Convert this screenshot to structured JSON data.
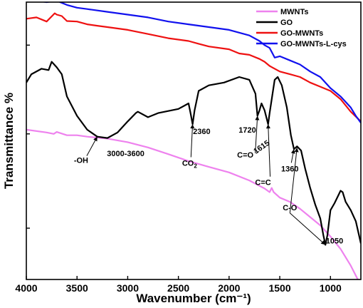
{
  "chart_data": {
    "type": "line",
    "title": "",
    "xlabel": "Wavenumber (cm⁻¹)",
    "ylabel": "Transmittance %",
    "xlim": [
      4000,
      700
    ],
    "ylim": [
      0,
      100
    ],
    "x_reversed": true,
    "xticks": [
      4000,
      3500,
      3000,
      2500,
      2000,
      1500,
      1000
    ],
    "xtick_labels": [
      "4000",
      "3500",
      "3000",
      "2500",
      "2000",
      "1500",
      "1000"
    ],
    "yticks": [
      18.5,
      52.5,
      84.5
    ],
    "ytick_labels": [
      "",
      "",
      ""
    ],
    "grid": false,
    "legend": {
      "placement": "top-right"
    },
    "series": [
      {
        "name": "MWNTs",
        "color": "#ee82ee",
        "points": [
          [
            4000,
            54
          ],
          [
            3800,
            53
          ],
          [
            3730,
            52.5
          ],
          [
            3700,
            53.2
          ],
          [
            3600,
            52
          ],
          [
            3500,
            52
          ],
          [
            3400,
            51.5
          ],
          [
            3200,
            50.8
          ],
          [
            3000,
            49.5
          ],
          [
            2800,
            47.6
          ],
          [
            2600,
            45.2
          ],
          [
            2400,
            42.7
          ],
          [
            2200,
            40.6
          ],
          [
            2000,
            38.6
          ],
          [
            1800,
            35.7
          ],
          [
            1650,
            32.8
          ],
          [
            1600,
            31.5
          ],
          [
            1580,
            33
          ],
          [
            1560,
            31.5
          ],
          [
            1500,
            29.5
          ],
          [
            1400,
            28
          ],
          [
            1300,
            25.5
          ],
          [
            1200,
            22.5
          ],
          [
            1100,
            19.5
          ],
          [
            1000,
            15.5
          ],
          [
            900,
            11
          ],
          [
            800,
            5
          ],
          [
            730,
            0
          ]
        ]
      },
      {
        "name": "GO",
        "color": "#000000",
        "points": [
          [
            4000,
            71
          ],
          [
            3950,
            74
          ],
          [
            3850,
            76
          ],
          [
            3780,
            75.5
          ],
          [
            3750,
            78.5
          ],
          [
            3700,
            76.5
          ],
          [
            3650,
            74
          ],
          [
            3600,
            66
          ],
          [
            3500,
            59
          ],
          [
            3400,
            54
          ],
          [
            3300,
            51.5
          ],
          [
            3200,
            51
          ],
          [
            3100,
            53
          ],
          [
            3000,
            57
          ],
          [
            2920,
            60
          ],
          [
            2900,
            60.5
          ],
          [
            2800,
            58.5
          ],
          [
            2700,
            60
          ],
          [
            2500,
            61.5
          ],
          [
            2400,
            63.5
          ],
          [
            2380,
            60
          ],
          [
            2360,
            56
          ],
          [
            2340,
            61
          ],
          [
            2300,
            68
          ],
          [
            2200,
            70
          ],
          [
            2050,
            71
          ],
          [
            1900,
            73
          ],
          [
            1800,
            72
          ],
          [
            1740,
            67
          ],
          [
            1720,
            59
          ],
          [
            1700,
            61
          ],
          [
            1680,
            63.5
          ],
          [
            1650,
            61
          ],
          [
            1615,
            56
          ],
          [
            1600,
            60
          ],
          [
            1550,
            72
          ],
          [
            1520,
            73
          ],
          [
            1480,
            70
          ],
          [
            1430,
            62
          ],
          [
            1390,
            52
          ],
          [
            1360,
            47
          ],
          [
            1330,
            48
          ],
          [
            1290,
            46.5
          ],
          [
            1250,
            40
          ],
          [
            1200,
            33
          ],
          [
            1150,
            27
          ],
          [
            1100,
            22
          ],
          [
            1070,
            16
          ],
          [
            1050,
            12.5
          ],
          [
            1030,
            16
          ],
          [
            1000,
            25
          ],
          [
            960,
            27.5
          ],
          [
            900,
            32
          ],
          [
            880,
            31.5
          ],
          [
            850,
            28
          ],
          [
            800,
            25
          ],
          [
            750,
            21
          ],
          [
            700,
            13
          ]
        ]
      },
      {
        "name": "GO-MWNTs",
        "color": "#ee1111",
        "points": [
          [
            4000,
            94
          ],
          [
            3900,
            94.5
          ],
          [
            3800,
            93
          ],
          [
            3720,
            96
          ],
          [
            3700,
            95.5
          ],
          [
            3650,
            95
          ],
          [
            3600,
            93.2
          ],
          [
            3500,
            93
          ],
          [
            3400,
            92
          ],
          [
            3300,
            91.5
          ],
          [
            3200,
            91
          ],
          [
            3000,
            90
          ],
          [
            2800,
            88.5
          ],
          [
            2600,
            87
          ],
          [
            2400,
            86
          ],
          [
            2300,
            85
          ],
          [
            2200,
            84
          ],
          [
            2000,
            83
          ],
          [
            1900,
            81.5
          ],
          [
            1800,
            81
          ],
          [
            1700,
            79.5
          ],
          [
            1650,
            78.5
          ],
          [
            1600,
            77
          ],
          [
            1500,
            75
          ],
          [
            1400,
            74
          ],
          [
            1300,
            73
          ],
          [
            1200,
            71
          ],
          [
            1100,
            69.5
          ],
          [
            1000,
            68
          ],
          [
            900,
            65
          ],
          [
            800,
            60.5
          ],
          [
            700,
            57
          ]
        ]
      },
      {
        "name": "GO-MWNTs-L-cys",
        "color": "#1111ee",
        "points": [
          [
            4000,
            101
          ],
          [
            3900,
            100.5
          ],
          [
            3800,
            100
          ],
          [
            3700,
            100.5
          ],
          [
            3600,
            99
          ],
          [
            3500,
            98
          ],
          [
            3400,
            97.5
          ],
          [
            3200,
            96.5
          ],
          [
            3000,
            95.5
          ],
          [
            2800,
            94.5
          ],
          [
            2600,
            93
          ],
          [
            2400,
            92
          ],
          [
            2200,
            91
          ],
          [
            2000,
            90
          ],
          [
            1800,
            88
          ],
          [
            1700,
            86
          ],
          [
            1650,
            84.5
          ],
          [
            1600,
            83.5
          ],
          [
            1550,
            80
          ],
          [
            1500,
            80.5
          ],
          [
            1400,
            79
          ],
          [
            1300,
            77.5
          ],
          [
            1200,
            75
          ],
          [
            1100,
            73
          ],
          [
            1000,
            69
          ],
          [
            900,
            66
          ],
          [
            800,
            62
          ],
          [
            750,
            59
          ],
          [
            700,
            56.5
          ]
        ]
      }
    ],
    "annotations": [
      {
        "text": "-OH",
        "at": [
          3300,
          51.5
        ],
        "label_pos": [
          3460,
          42
        ]
      },
      {
        "text": "3000-3600",
        "at": [
          3300,
          51.5
        ],
        "label_pos": [
          3020,
          44.5
        ]
      },
      {
        "text": "CO",
        "subscript": "2",
        "at": [
          2360,
          56
        ],
        "label_pos": [
          2390,
          41
        ]
      },
      {
        "text": "2360",
        "at": [
          2360,
          56
        ],
        "label_pos": [
          2270,
          52.5
        ]
      },
      {
        "text": "1720",
        "at": [
          1720,
          59
        ],
        "label_pos": [
          1820,
          53
        ]
      },
      {
        "text": "C=O",
        "at": [
          1720,
          59
        ],
        "label_pos": [
          1840,
          44
        ]
      },
      {
        "text": "1615",
        "at": [
          1615,
          56
        ],
        "label_pos": [
          1665,
          47
        ],
        "rotate": -35
      },
      {
        "text": "C=C",
        "at": [
          1615,
          56
        ],
        "label_pos": [
          1665,
          34
        ]
      },
      {
        "text": "1360",
        "at": [
          1360,
          47
        ],
        "label_pos": [
          1400,
          39
        ]
      },
      {
        "text": "C-O",
        "at": [
          1050,
          12.5
        ],
        "label_pos": [
          1400,
          25
        ]
      },
      {
        "text": "1050",
        "at": [
          1050,
          12.5
        ],
        "label_pos": [
          960,
          13
        ]
      }
    ]
  }
}
